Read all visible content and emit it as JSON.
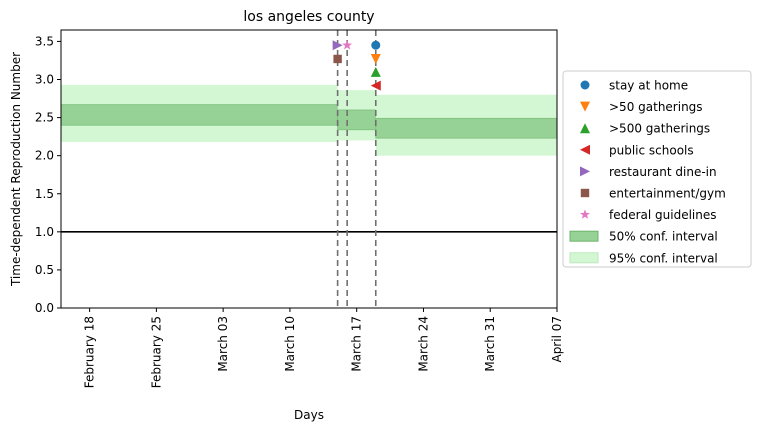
{
  "chart_data": {
    "type": "line",
    "title": "los angeles county",
    "xlabel": "Days",
    "ylabel": "Time-dependent Reproduction Number",
    "x_ticks": [
      "February 18",
      "February 25",
      "March 03",
      "March 10",
      "March 17",
      "March 24",
      "March 31",
      "April 07"
    ],
    "x_range": [
      "2020-02-15",
      "2020-04-07"
    ],
    "y_ticks": [
      "0.0",
      "0.5",
      "1.0",
      "1.5",
      "2.0",
      "2.5",
      "3.0",
      "3.5"
    ],
    "ylim": [
      0,
      3.65
    ],
    "reference_line": 1.0,
    "intervention_lines": [
      "2020-03-15",
      "2020-03-16",
      "2020-03-19"
    ],
    "confidence_intervals": [
      {
        "start": "2020-02-15",
        "end": "2020-03-15",
        "ci50": [
          2.4,
          2.67
        ],
        "ci95": [
          2.18,
          2.93
        ]
      },
      {
        "start": "2020-03-15",
        "end": "2020-03-19",
        "ci50": [
          2.34,
          2.6
        ],
        "ci95": [
          2.2,
          2.86
        ]
      },
      {
        "start": "2020-03-19",
        "end": "2020-04-07",
        "ci50": [
          2.23,
          2.49
        ],
        "ci95": [
          2.0,
          2.8
        ]
      }
    ],
    "interventions": [
      {
        "name": "stay at home",
        "date": "2020-03-19",
        "y": 3.45,
        "marker": "circle",
        "color": "#1f77b4"
      },
      {
        "name": ">50 gatherings",
        "date": "2020-03-19",
        "y": 3.27,
        "marker": "triangle-down",
        "color": "#ff7f0e"
      },
      {
        "name": ">500 gatherings",
        "date": "2020-03-19",
        "y": 3.1,
        "marker": "triangle-up",
        "color": "#2ca02c"
      },
      {
        "name": "public schools",
        "date": "2020-03-19",
        "y": 2.92,
        "marker": "triangle-left",
        "color": "#d62728"
      },
      {
        "name": "restaurant dine-in",
        "date": "2020-03-15",
        "y": 3.45,
        "marker": "triangle-right",
        "color": "#9467bd"
      },
      {
        "name": "entertainment/gym",
        "date": "2020-03-15",
        "y": 3.27,
        "marker": "square",
        "color": "#8c564b"
      },
      {
        "name": "federal guidelines",
        "date": "2020-03-16",
        "y": 3.45,
        "marker": "star",
        "color": "#e377c2"
      }
    ],
    "legend": {
      "placement": "right",
      "ci50_label": "50% conf. interval",
      "ci95_label": "95% conf. interval",
      "ci50_color": "#96d196",
      "ci95_color": "#d3f7d3"
    }
  }
}
